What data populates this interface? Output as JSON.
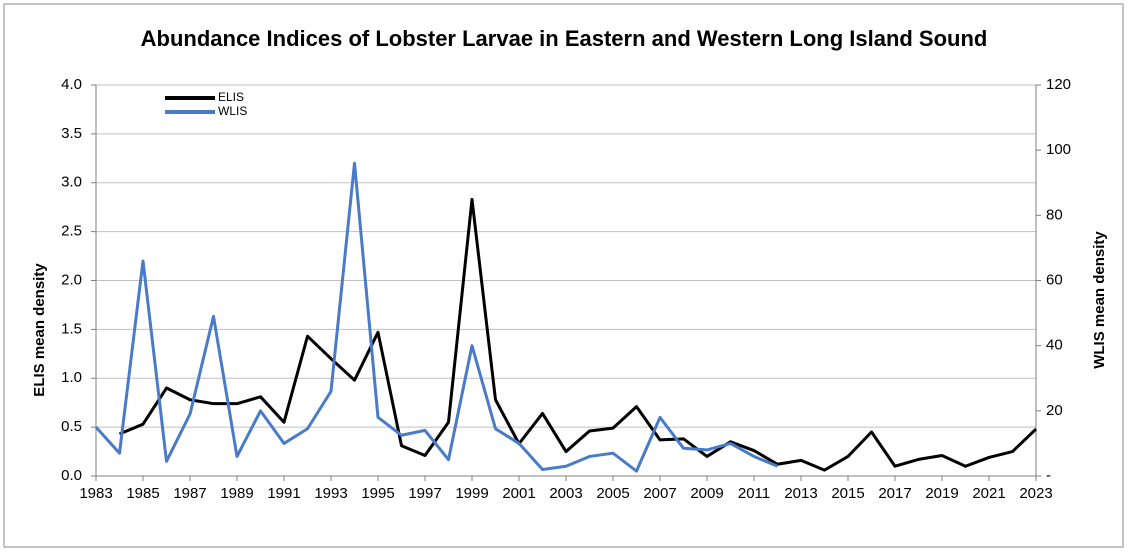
{
  "chart_data": {
    "type": "line",
    "title": "Abundance Indices of Lobster Larvae in Eastern and Western Long Island Sound",
    "x": [
      1983,
      1984,
      1985,
      1986,
      1987,
      1988,
      1989,
      1990,
      1991,
      1992,
      1993,
      1994,
      1995,
      1996,
      1997,
      1998,
      1999,
      2000,
      2001,
      2002,
      2003,
      2004,
      2005,
      2006,
      2007,
      2008,
      2009,
      2010,
      2011,
      2012,
      2013,
      2014,
      2015,
      2016,
      2017,
      2018,
      2019,
      2020,
      2021,
      2022,
      2023
    ],
    "series": [
      {
        "name": "ELIS",
        "color": "#000000",
        "axis": "y",
        "values": [
          null,
          0.43,
          0.53,
          0.9,
          0.78,
          0.74,
          0.74,
          0.81,
          0.55,
          1.43,
          1.2,
          0.98,
          1.47,
          0.31,
          0.21,
          0.55,
          2.83,
          0.78,
          0.33,
          0.64,
          0.25,
          0.46,
          0.49,
          0.71,
          0.37,
          0.38,
          0.2,
          0.35,
          0.26,
          0.12,
          0.16,
          0.06,
          0.2,
          0.45,
          0.1,
          0.17,
          0.21,
          0.1,
          0.19,
          0.25,
          0.48
        ]
      },
      {
        "name": "WLIS",
        "color": "#4a7bc8",
        "axis": "y2",
        "values": [
          15,
          7,
          66,
          4.5,
          19,
          49,
          6,
          20,
          10,
          14.5,
          26,
          96,
          18,
          12.5,
          14,
          5,
          40,
          14.5,
          10,
          2,
          3,
          6,
          7,
          1.5,
          18,
          8.5,
          8,
          10,
          6,
          3,
          null,
          null,
          null,
          null,
          null,
          null,
          null,
          null,
          null,
          null,
          null
        ]
      }
    ],
    "xlim": [
      1983,
      2023
    ],
    "xticks": [
      1983,
      1985,
      1987,
      1989,
      1991,
      1993,
      1995,
      1997,
      1999,
      2001,
      2003,
      2005,
      2007,
      2009,
      2011,
      2013,
      2015,
      2017,
      2019,
      2021,
      2023
    ],
    "ylim": [
      0,
      4
    ],
    "yticks": [
      {
        "value": 0,
        "label": "0.0"
      },
      {
        "value": 0.5,
        "label": "0.5"
      },
      {
        "value": 1,
        "label": "1.0"
      },
      {
        "value": 1.5,
        "label": "1.5"
      },
      {
        "value": 2,
        "label": "2.0"
      },
      {
        "value": 2.5,
        "label": "2.5"
      },
      {
        "value": 3,
        "label": "3.0"
      },
      {
        "value": 3.5,
        "label": "3.5"
      },
      {
        "value": 4,
        "label": "4.0"
      }
    ],
    "y2lim": [
      0,
      120
    ],
    "y2ticks": [
      {
        "value": 0,
        "label": "-"
      },
      20,
      40,
      60,
      80,
      100,
      120
    ],
    "ylabel": "ELIS mean density",
    "y2label": "WLIS  mean density",
    "grid": true,
    "legend": "upper left"
  }
}
